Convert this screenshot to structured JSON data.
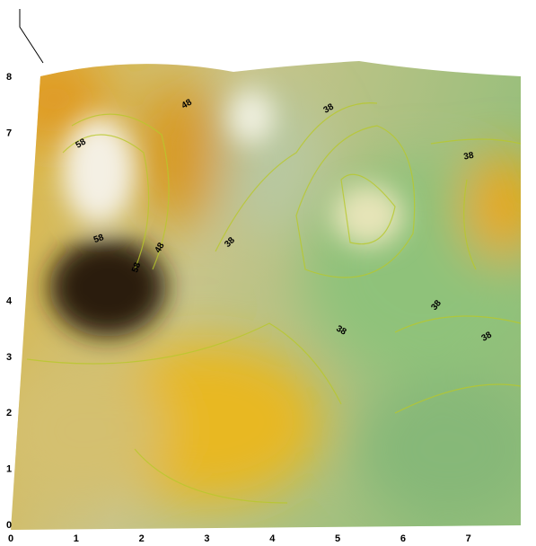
{
  "chart_data": {
    "type": "surface",
    "xlim": [
      0,
      7.8
    ],
    "xticks": [
      0,
      1,
      2,
      3,
      4,
      5,
      6,
      7
    ],
    "ylim": [
      0,
      8
    ],
    "yticks": [
      0,
      1,
      2,
      3,
      4,
      7,
      8
    ],
    "contour_labels": [
      48,
      38,
      58,
      38,
      38,
      58,
      48,
      58,
      38,
      38,
      38
    ]
  }
}
